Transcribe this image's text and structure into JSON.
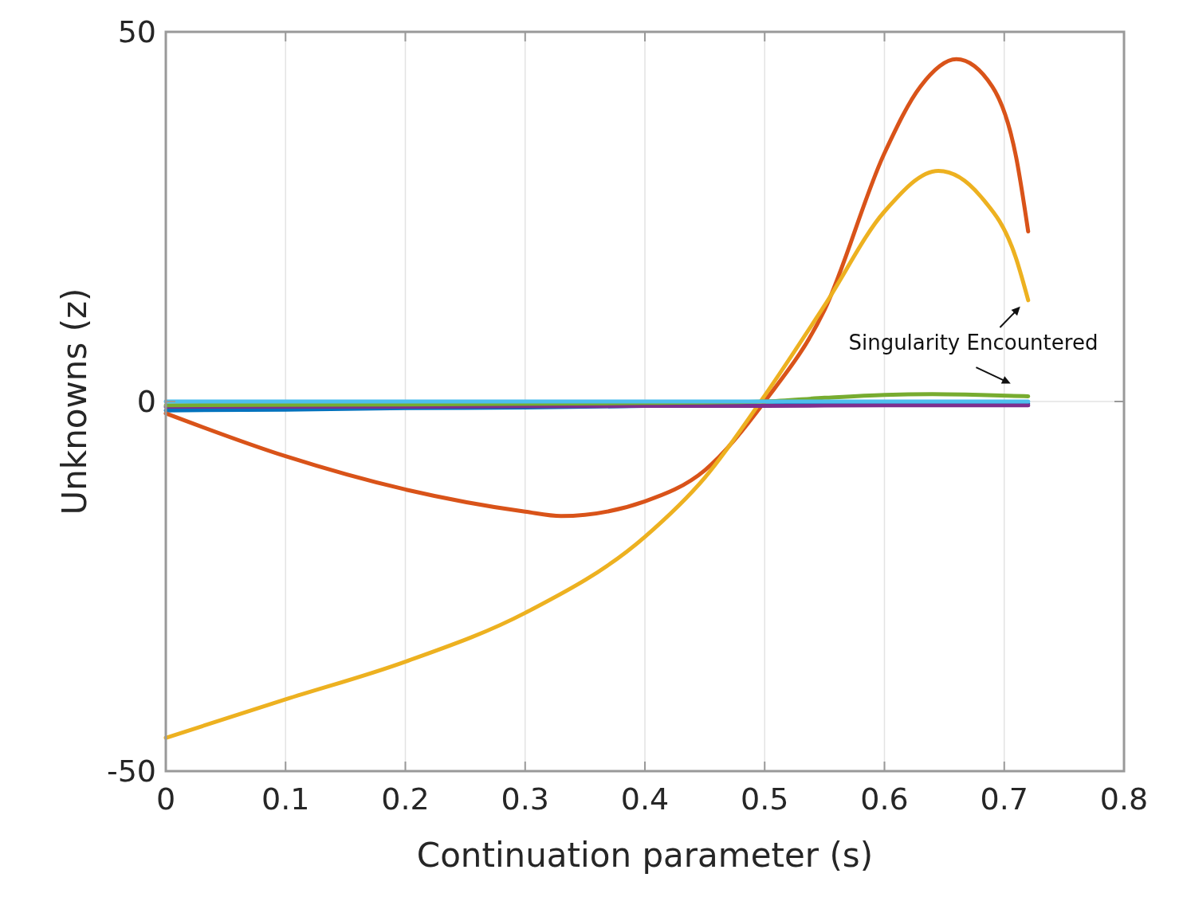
{
  "chart_data": {
    "type": "line",
    "xlabel": "Continuation parameter (s)",
    "ylabel": "Unknowns (z)",
    "xlim": [
      0,
      0.8
    ],
    "ylim": [
      -50,
      50
    ],
    "xticks": [
      0,
      0.1,
      0.2,
      0.3,
      0.4,
      0.5,
      0.6,
      0.7,
      0.8
    ],
    "yticks": [
      -50,
      0,
      50
    ],
    "grid": true,
    "line_style": "solid",
    "annotations": [
      "Singularity Encountered"
    ],
    "series": [
      {
        "color": "#0072bd",
        "x": [
          0,
          0.1,
          0.2,
          0.3,
          0.4,
          0.5,
          0.6,
          0.72
        ],
        "values": [
          -1.2,
          -1.1,
          -0.9,
          -0.8,
          -0.6,
          -0.5,
          -0.4,
          -0.3
        ]
      },
      {
        "color": "#d95319",
        "x": [
          0,
          0.1,
          0.2,
          0.3,
          0.33,
          0.4,
          0.45,
          0.5,
          0.55,
          0.6,
          0.63,
          0.66,
          0.69,
          0.71,
          0.72
        ],
        "values": [
          -1.6,
          -7.4,
          -11.9,
          -14.9,
          -15.5,
          -13.5,
          -9.3,
          0,
          12.4,
          33.6,
          42.6,
          46.3,
          42.6,
          33,
          23
        ]
      },
      {
        "color": "#edb120",
        "x": [
          0,
          0.1,
          0.2,
          0.3,
          0.4,
          0.45,
          0.5,
          0.55,
          0.6,
          0.645,
          0.68,
          0.71,
          0.72
        ],
        "values": [
          -45.5,
          -40.3,
          -35.2,
          -28.6,
          -18.3,
          -10.3,
          0.8,
          13,
          25.7,
          31.2,
          27.8,
          19.3,
          13.7
        ]
      },
      {
        "color": "#7e2f8e",
        "x": [
          0,
          0.2,
          0.4,
          0.5,
          0.6,
          0.72
        ],
        "values": [
          -0.7,
          -0.7,
          -0.6,
          -0.6,
          -0.5,
          -0.5
        ]
      },
      {
        "color": "#77ac30",
        "x": [
          0,
          0.2,
          0.4,
          0.5,
          0.55,
          0.6,
          0.64,
          0.68,
          0.72
        ],
        "values": [
          -0.5,
          -0.4,
          -0.2,
          0,
          0.5,
          0.9,
          1,
          0.9,
          0.7
        ]
      },
      {
        "color": "#4dbeee",
        "x": [
          0,
          0.2,
          0.4,
          0.6,
          0.72
        ],
        "values": [
          0,
          0,
          0,
          0,
          0
        ]
      }
    ]
  }
}
